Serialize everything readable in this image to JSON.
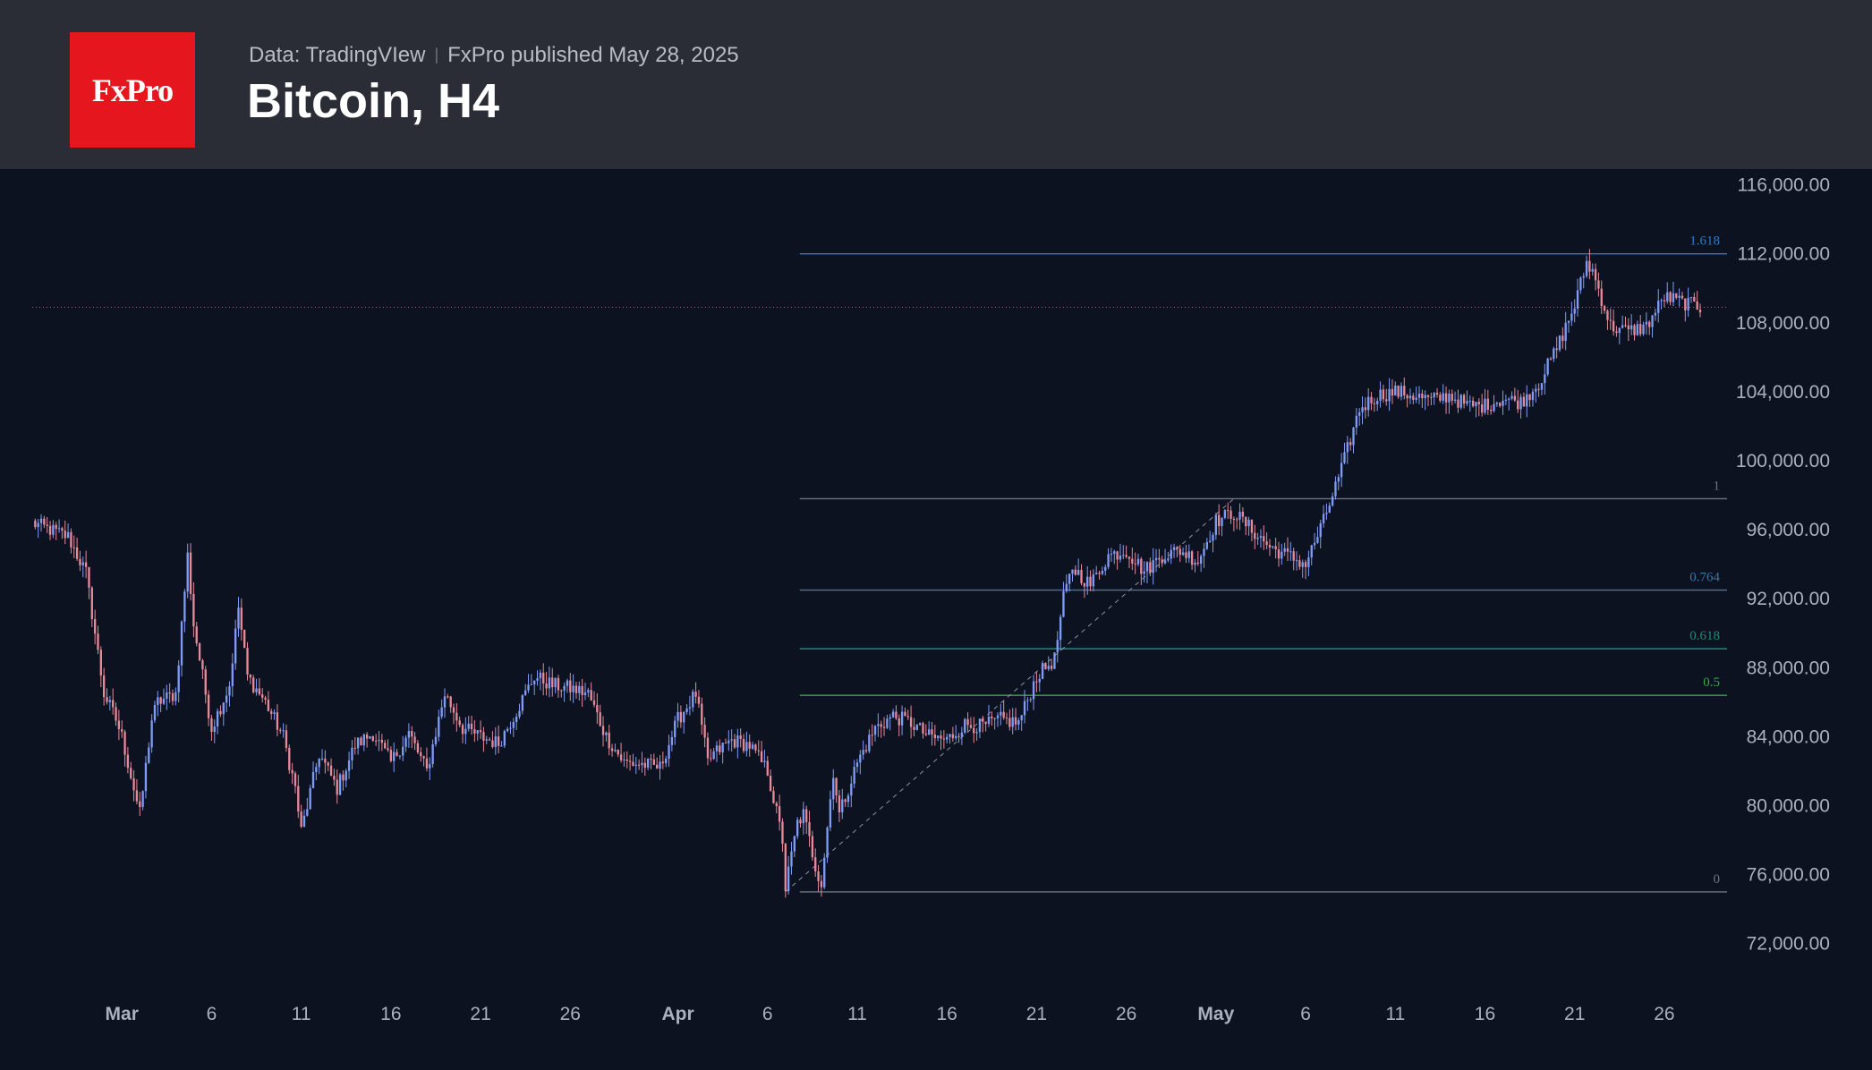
{
  "header": {
    "logo_text": "FxPro",
    "data_source": "Data: TradingVIew",
    "separator": "|",
    "published": "FxPro published May 28, 2025",
    "title": "Bitcoin, H4"
  },
  "colors": {
    "background": "#0d1220",
    "header_bg": "#2a2d36",
    "logo_bg": "#e5161d",
    "candle_up": "#7f9cf5",
    "candle_down": "#e58a98",
    "fib_1618": "#2f79c6",
    "fib_1": "#6b7484",
    "fib_0764": "#3f77a8",
    "fib_0618": "#1f8a7c",
    "fib_05": "#3ea34a",
    "fib_0": "#6b7484",
    "price_line": "#b9566c",
    "axis_text": "#aab0bc"
  },
  "chart_data": {
    "type": "candlestick",
    "title": "Bitcoin, H4",
    "timeframe": "H4",
    "x_axis": {
      "start": "2025-02-24",
      "end": "2025-05-28",
      "tick_labels": [
        {
          "label": "Mar",
          "date": "2025-03-01",
          "bold": true
        },
        {
          "label": "6",
          "date": "2025-03-06"
        },
        {
          "label": "11",
          "date": "2025-03-11"
        },
        {
          "label": "16",
          "date": "2025-03-16"
        },
        {
          "label": "21",
          "date": "2025-03-21"
        },
        {
          "label": "26",
          "date": "2025-03-26"
        },
        {
          "label": "Apr",
          "date": "2025-04-01",
          "bold": true
        },
        {
          "label": "6",
          "date": "2025-04-06"
        },
        {
          "label": "11",
          "date": "2025-04-11"
        },
        {
          "label": "16",
          "date": "2025-04-16"
        },
        {
          "label": "21",
          "date": "2025-04-21"
        },
        {
          "label": "26",
          "date": "2025-04-26"
        },
        {
          "label": "May",
          "date": "2025-05-01",
          "bold": true
        },
        {
          "label": "6",
          "date": "2025-05-06"
        },
        {
          "label": "11",
          "date": "2025-05-11"
        },
        {
          "label": "16",
          "date": "2025-05-16"
        },
        {
          "label": "21",
          "date": "2025-05-21"
        },
        {
          "label": "26",
          "date": "2025-05-26"
        }
      ]
    },
    "y_axis": {
      "ylim": [
        71000,
        116500
      ],
      "ticks": [
        116000,
        112000,
        108000,
        104000,
        100000,
        96000,
        92000,
        88000,
        84000,
        80000,
        76000,
        72000
      ],
      "tick_labels": [
        "116,000.00",
        "112,000.00",
        "108,000.00",
        "104,000.00",
        "100,000.00",
        "96,000.00",
        "92,000.00",
        "88,000.00",
        "84,000.00",
        "80,000.00",
        "76,000.00",
        "72,000.00"
      ]
    },
    "price_path": [
      {
        "date": "2025-02-24",
        "close": 96400
      },
      {
        "date": "2025-02-26",
        "close": 95600
      },
      {
        "date": "2025-02-27",
        "close": 93500
      },
      {
        "date": "2025-02-28",
        "close": 86500
      },
      {
        "date": "2025-02-28T16:00",
        "close": 85000
      },
      {
        "date": "2025-03-01",
        "close": 84000
      },
      {
        "date": "2025-03-02",
        "close": 79500
      },
      {
        "date": "2025-03-02T16:00",
        "close": 85000
      },
      {
        "date": "2025-03-03",
        "close": 86000
      },
      {
        "date": "2025-03-04",
        "close": 86500
      },
      {
        "date": "2025-03-04T16:00",
        "close": 94500
      },
      {
        "date": "2025-03-05",
        "close": 90500
      },
      {
        "date": "2025-03-06",
        "close": 84500
      },
      {
        "date": "2025-03-07",
        "close": 87000
      },
      {
        "date": "2025-03-07T12:00",
        "close": 91500
      },
      {
        "date": "2025-03-08",
        "close": 87500
      },
      {
        "date": "2025-03-09",
        "close": 86000
      },
      {
        "date": "2025-03-10",
        "close": 84000
      },
      {
        "date": "2025-03-10T16:00",
        "close": 81000
      },
      {
        "date": "2025-03-11",
        "close": 78500
      },
      {
        "date": "2025-03-12",
        "close": 83000
      },
      {
        "date": "2025-03-13",
        "close": 81000
      },
      {
        "date": "2025-03-14",
        "close": 83500
      },
      {
        "date": "2025-03-15",
        "close": 84200
      },
      {
        "date": "2025-03-16",
        "close": 82500
      },
      {
        "date": "2025-03-17",
        "close": 84200
      },
      {
        "date": "2025-03-18",
        "close": 82000
      },
      {
        "date": "2025-03-19",
        "close": 86500
      },
      {
        "date": "2025-03-20",
        "close": 84500
      },
      {
        "date": "2025-03-21",
        "close": 84000
      },
      {
        "date": "2025-03-22",
        "close": 83600
      },
      {
        "date": "2025-03-23",
        "close": 85500
      },
      {
        "date": "2025-03-24",
        "close": 87500
      },
      {
        "date": "2025-03-25",
        "close": 87000
      },
      {
        "date": "2025-03-26",
        "close": 86800
      },
      {
        "date": "2025-03-27",
        "close": 86500
      },
      {
        "date": "2025-03-28",
        "close": 84000
      },
      {
        "date": "2025-03-29",
        "close": 82500
      },
      {
        "date": "2025-03-30",
        "close": 82400
      },
      {
        "date": "2025-03-31",
        "close": 82200
      },
      {
        "date": "2025-04-01",
        "close": 85000
      },
      {
        "date": "2025-04-02",
        "close": 86500
      },
      {
        "date": "2025-04-02T16:00",
        "close": 82500
      },
      {
        "date": "2025-04-03",
        "close": 83000
      },
      {
        "date": "2025-04-04",
        "close": 83800
      },
      {
        "date": "2025-04-05",
        "close": 83500
      },
      {
        "date": "2025-04-06",
        "close": 82000
      },
      {
        "date": "2025-04-06T20:00",
        "close": 78000
      },
      {
        "date": "2025-04-07",
        "close": 75200
      },
      {
        "date": "2025-04-07T16:00",
        "close": 79000
      },
      {
        "date": "2025-04-08",
        "close": 79500
      },
      {
        "date": "2025-04-08T16:00",
        "close": 76500
      },
      {
        "date": "2025-04-09",
        "close": 75500
      },
      {
        "date": "2025-04-09T16:00",
        "close": 82000
      },
      {
        "date": "2025-04-10",
        "close": 79500
      },
      {
        "date": "2025-04-11",
        "close": 82500
      },
      {
        "date": "2025-04-12",
        "close": 84500
      },
      {
        "date": "2025-04-13",
        "close": 85200
      },
      {
        "date": "2025-04-14",
        "close": 84800
      },
      {
        "date": "2025-04-15",
        "close": 84000
      },
      {
        "date": "2025-04-16",
        "close": 83800
      },
      {
        "date": "2025-04-17",
        "close": 84700
      },
      {
        "date": "2025-04-18",
        "close": 84600
      },
      {
        "date": "2025-04-19",
        "close": 85000
      },
      {
        "date": "2025-04-20",
        "close": 84800
      },
      {
        "date": "2025-04-21",
        "close": 87500
      },
      {
        "date": "2025-04-22",
        "close": 88500
      },
      {
        "date": "2025-04-22T12:00",
        "close": 92000
      },
      {
        "date": "2025-04-23",
        "close": 93800
      },
      {
        "date": "2025-04-24",
        "close": 92800
      },
      {
        "date": "2025-04-25",
        "close": 94500
      },
      {
        "date": "2025-04-26",
        "close": 94800
      },
      {
        "date": "2025-04-27",
        "close": 93600
      },
      {
        "date": "2025-04-28",
        "close": 94500
      },
      {
        "date": "2025-04-29",
        "close": 94800
      },
      {
        "date": "2025-04-30",
        "close": 94200
      },
      {
        "date": "2025-05-01",
        "close": 96500
      },
      {
        "date": "2025-05-02",
        "close": 97000
      },
      {
        "date": "2025-05-03",
        "close": 96000
      },
      {
        "date": "2025-05-04",
        "close": 95000
      },
      {
        "date": "2025-05-05",
        "close": 94500
      },
      {
        "date": "2025-05-06",
        "close": 94000
      },
      {
        "date": "2025-05-07",
        "close": 96500
      },
      {
        "date": "2025-05-08",
        "close": 99500
      },
      {
        "date": "2025-05-09",
        "close": 103000
      },
      {
        "date": "2025-05-10",
        "close": 103800
      },
      {
        "date": "2025-05-11",
        "close": 104000
      },
      {
        "date": "2025-05-12",
        "close": 103800
      },
      {
        "date": "2025-05-13",
        "close": 103500
      },
      {
        "date": "2025-05-14",
        "close": 103800
      },
      {
        "date": "2025-05-15",
        "close": 103200
      },
      {
        "date": "2025-05-16",
        "close": 103200
      },
      {
        "date": "2025-05-17",
        "close": 103600
      },
      {
        "date": "2025-05-18",
        "close": 103400
      },
      {
        "date": "2025-05-19",
        "close": 104500
      },
      {
        "date": "2025-05-20",
        "close": 106500
      },
      {
        "date": "2025-05-21",
        "close": 109000
      },
      {
        "date": "2025-05-21T16:00",
        "close": 111500
      },
      {
        "date": "2025-05-22",
        "close": 111000
      },
      {
        "date": "2025-05-23",
        "close": 107800
      },
      {
        "date": "2025-05-24",
        "close": 107500
      },
      {
        "date": "2025-05-25",
        "close": 107800
      },
      {
        "date": "2025-05-26",
        "close": 109500
      },
      {
        "date": "2025-05-27",
        "close": 109200
      },
      {
        "date": "2025-05-28",
        "close": 108900
      }
    ],
    "current_price": 108900,
    "fibonacci_extension": {
      "start_date": "2025-04-08",
      "end_date": "2025-05-28",
      "trend_start": {
        "date": "2025-04-07",
        "price": 75000
      },
      "trend_end": {
        "date": "2025-05-02",
        "price": 97800
      },
      "levels": [
        {
          "label": "1.618",
          "price": 112000,
          "color_key": "fib_1618"
        },
        {
          "label": "1",
          "price": 97800,
          "color_key": "fib_1"
        },
        {
          "label": "0.764",
          "price": 92500,
          "color_key": "fib_0764"
        },
        {
          "label": "0.618",
          "price": 89100,
          "color_key": "fib_0618"
        },
        {
          "label": "0.5",
          "price": 86400,
          "color_key": "fib_05"
        },
        {
          "label": "0",
          "price": 75000,
          "color_key": "fib_0"
        }
      ]
    },
    "grid": false,
    "legend": "none"
  }
}
